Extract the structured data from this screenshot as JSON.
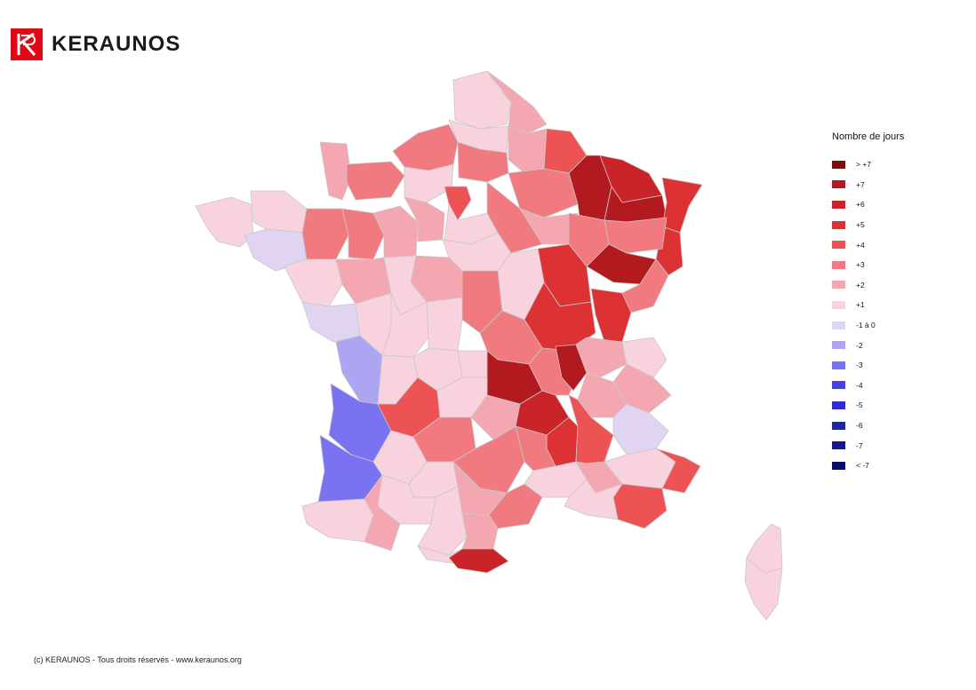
{
  "brand": {
    "name": "KERAUNOS",
    "logo_color": "#e30613"
  },
  "legend": {
    "title": "Nombre de jours",
    "items": [
      {
        "label": "> +7",
        "color": "#7f0b0d"
      },
      {
        "label": "+7",
        "color": "#b31a1f"
      },
      {
        "label": "+6",
        "color": "#c8242a"
      },
      {
        "label": "+5",
        "color": "#dc3234"
      },
      {
        "label": "+4",
        "color": "#ed5254"
      },
      {
        "label": "+3",
        "color": "#f07a80"
      },
      {
        "label": "+2",
        "color": "#f4a7b0"
      },
      {
        "label": "+1",
        "color": "#f8d2dd"
      },
      {
        "label": "-1 à 0",
        "color": "#e0d4f2"
      },
      {
        "label": "-2",
        "color": "#aca6f2"
      },
      {
        "label": "-3",
        "color": "#7b72f2"
      },
      {
        "label": "-4",
        "color": "#4a40e6"
      },
      {
        "label": "-5",
        "color": "#2f2bd0"
      },
      {
        "label": "-6",
        "color": "#1e23aa"
      },
      {
        "label": "-7",
        "color": "#15188a"
      },
      {
        "label": "< -7",
        "color": "#0c0d6b"
      }
    ]
  },
  "footer": {
    "text": "(c) KERAUNOS - Tous droits réservés - www.keraunos.org"
  }
}
